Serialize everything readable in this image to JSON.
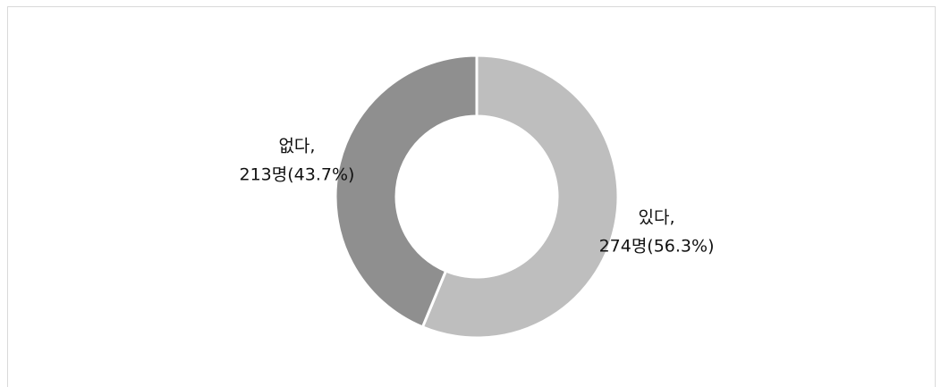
{
  "chart_data": {
    "type": "donut",
    "categories": [
      "있다,",
      "없다,"
    ],
    "values": [
      274,
      213
    ],
    "value_labels": [
      "274명(56.3%)",
      "213명(43.7%)"
    ],
    "colors": [
      "#bebebe",
      "#8f8f8f"
    ]
  }
}
